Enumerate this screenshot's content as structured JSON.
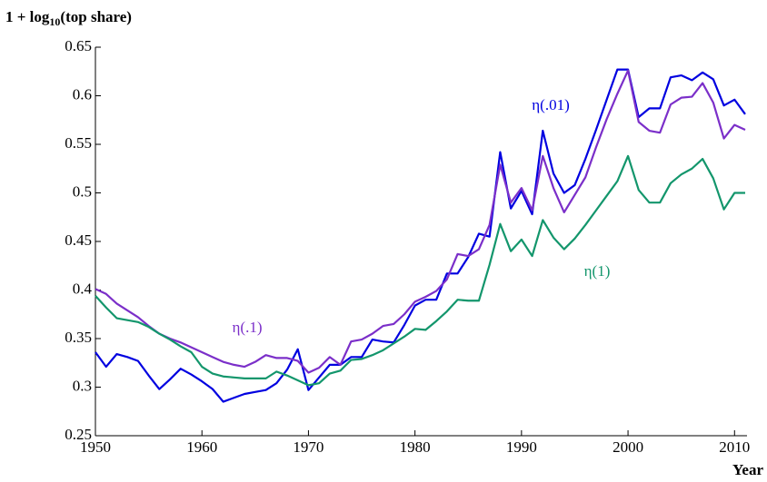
{
  "chart_data": {
    "type": "line",
    "y_label": "1 + log10(top share)",
    "x_label": "Year",
    "x": [
      1950,
      1951,
      1952,
      1953,
      1954,
      1955,
      1956,
      1957,
      1958,
      1959,
      1960,
      1961,
      1962,
      1963,
      1964,
      1965,
      1966,
      1967,
      1968,
      1969,
      1970,
      1971,
      1972,
      1973,
      1974,
      1975,
      1976,
      1977,
      1978,
      1979,
      1980,
      1981,
      1982,
      1983,
      1984,
      1985,
      1986,
      1987,
      1988,
      1989,
      1990,
      1991,
      1992,
      1993,
      1994,
      1995,
      1996,
      1997,
      1998,
      1999,
      2000,
      2001,
      2002,
      2003,
      2004,
      2005,
      2006,
      2007,
      2008,
      2009,
      2010,
      2011
    ],
    "series": [
      {
        "name": "η(.01)",
        "color": "#0000e0",
        "values": [
          0.336,
          0.321,
          0.334,
          0.331,
          0.327,
          0.312,
          0.298,
          0.308,
          0.319,
          0.313,
          0.306,
          0.298,
          0.285,
          0.289,
          0.293,
          0.295,
          0.297,
          0.304,
          0.318,
          0.339,
          0.297,
          0.31,
          0.323,
          0.323,
          0.331,
          0.331,
          0.349,
          0.347,
          0.346,
          0.364,
          0.384,
          0.39,
          0.39,
          0.417,
          0.417,
          0.434,
          0.458,
          0.455,
          0.542,
          0.484,
          0.502,
          0.478,
          0.564,
          0.52,
          0.5,
          0.508,
          0.535,
          0.565,
          0.596,
          0.627,
          0.627,
          0.578,
          0.587,
          0.587,
          0.619,
          0.621,
          0.616,
          0.624,
          0.617,
          0.59,
          0.596,
          0.581
        ]
      },
      {
        "name": "η(.1)",
        "color": "#7b2fc9",
        "values": [
          0.401,
          0.396,
          0.386,
          0.379,
          0.372,
          0.363,
          0.355,
          0.35,
          0.346,
          0.341,
          0.336,
          0.331,
          0.326,
          0.323,
          0.321,
          0.326,
          0.333,
          0.33,
          0.33,
          0.327,
          0.315,
          0.32,
          0.331,
          0.323,
          0.347,
          0.349,
          0.355,
          0.363,
          0.365,
          0.375,
          0.388,
          0.393,
          0.399,
          0.411,
          0.437,
          0.435,
          0.442,
          0.467,
          0.529,
          0.49,
          0.505,
          0.482,
          0.538,
          0.505,
          0.48,
          0.498,
          0.516,
          0.547,
          0.576,
          0.602,
          0.626,
          0.573,
          0.564,
          0.562,
          0.591,
          0.598,
          0.599,
          0.613,
          0.593,
          0.556,
          0.57,
          0.565
        ]
      },
      {
        "name": "η(1)",
        "color": "#13966c",
        "values": [
          0.394,
          0.382,
          0.371,
          0.369,
          0.367,
          0.362,
          0.355,
          0.349,
          0.342,
          0.336,
          0.321,
          0.314,
          0.311,
          0.31,
          0.309,
          0.309,
          0.309,
          0.316,
          0.312,
          0.307,
          0.302,
          0.304,
          0.314,
          0.317,
          0.328,
          0.329,
          0.333,
          0.338,
          0.345,
          0.352,
          0.36,
          0.359,
          0.368,
          0.378,
          0.39,
          0.389,
          0.389,
          0.426,
          0.468,
          0.44,
          0.452,
          0.435,
          0.472,
          0.454,
          0.442,
          0.453,
          0.467,
          0.482,
          0.497,
          0.512,
          0.538,
          0.503,
          0.49,
          0.49,
          0.51,
          0.519,
          0.525,
          0.535,
          0.515,
          0.483,
          0.5,
          0.5
        ]
      }
    ],
    "xlim": [
      1950,
      2011
    ],
    "ylim": [
      0.25,
      0.65
    ],
    "xticks": [
      1950,
      1960,
      1970,
      1980,
      1990,
      2000,
      2010
    ],
    "yticks": [
      0.25,
      0.3,
      0.35,
      0.4,
      0.45,
      0.5,
      0.55,
      0.6,
      0.65
    ],
    "grid": false
  }
}
